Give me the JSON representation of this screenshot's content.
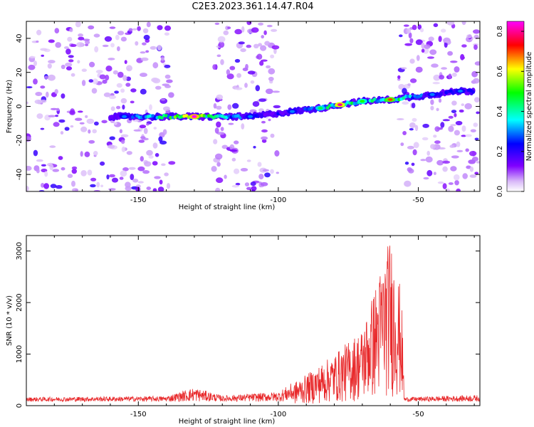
{
  "title": "C2E3.2023.361.14.47.R04",
  "chart_data": [
    {
      "type": "heatmap",
      "xlabel": "Height of straight line (km)",
      "ylabel": "Frequency (Hz)",
      "xlim": [
        -190,
        -28
      ],
      "ylim": [
        -50,
        50
      ],
      "xticks": [
        -150,
        -100,
        -50
      ],
      "yticks": [
        -40,
        -20,
        0,
        20,
        40
      ],
      "colorbar": {
        "label": "Normalized spectral amplitude",
        "range": [
          0,
          0.85
        ],
        "ticks": [
          0.0,
          0.2,
          0.4,
          0.6,
          0.8
        ],
        "colors": [
          "#ffffff",
          "#d8b8f8",
          "#8000ff",
          "#0000ff",
          "#00ffff",
          "#00ff00",
          "#ffff00",
          "#ff0000",
          "#ff00ff"
        ]
      },
      "clutter_bands_km": [
        [
          -190,
          -138
        ],
        [
          -123,
          -100
        ],
        [
          -57,
          -28
        ]
      ],
      "ridge": [
        {
          "x": -155,
          "y": -6,
          "amp": 0.3
        },
        {
          "x": -130,
          "y": -6,
          "amp": 0.85
        },
        {
          "x": -110,
          "y": -6,
          "amp": 0.3
        },
        {
          "x": -95,
          "y": -3,
          "amp": 0.3
        },
        {
          "x": -85,
          "y": -1,
          "amp": 0.45
        },
        {
          "x": -78,
          "y": 1,
          "amp": 0.8
        },
        {
          "x": -70,
          "y": 3,
          "amp": 0.5
        },
        {
          "x": -60,
          "y": 4,
          "amp": 0.7
        },
        {
          "x": -45,
          "y": 7,
          "amp": 0.3
        },
        {
          "x": -35,
          "y": 9,
          "amp": 0.3
        }
      ]
    },
    {
      "type": "line",
      "xlabel": "Height of straight line (km)",
      "ylabel": "SNR (10 * v/v)",
      "xlim": [
        -190,
        -28
      ],
      "ylim": [
        0,
        3300
      ],
      "xticks": [
        -150,
        -100,
        -50
      ],
      "yticks": [
        0,
        1000,
        2000,
        3000
      ],
      "color": "#e8282a",
      "envelope": {
        "x": [
          -190,
          -140,
          -130,
          -120,
          -100,
          -90,
          -80,
          -70,
          -65,
          -60,
          -56,
          -55,
          -28
        ],
        "y": [
          160,
          180,
          340,
          190,
          260,
          600,
          1000,
          1500,
          2400,
          3300,
          2200,
          160,
          200
        ]
      }
    }
  ]
}
